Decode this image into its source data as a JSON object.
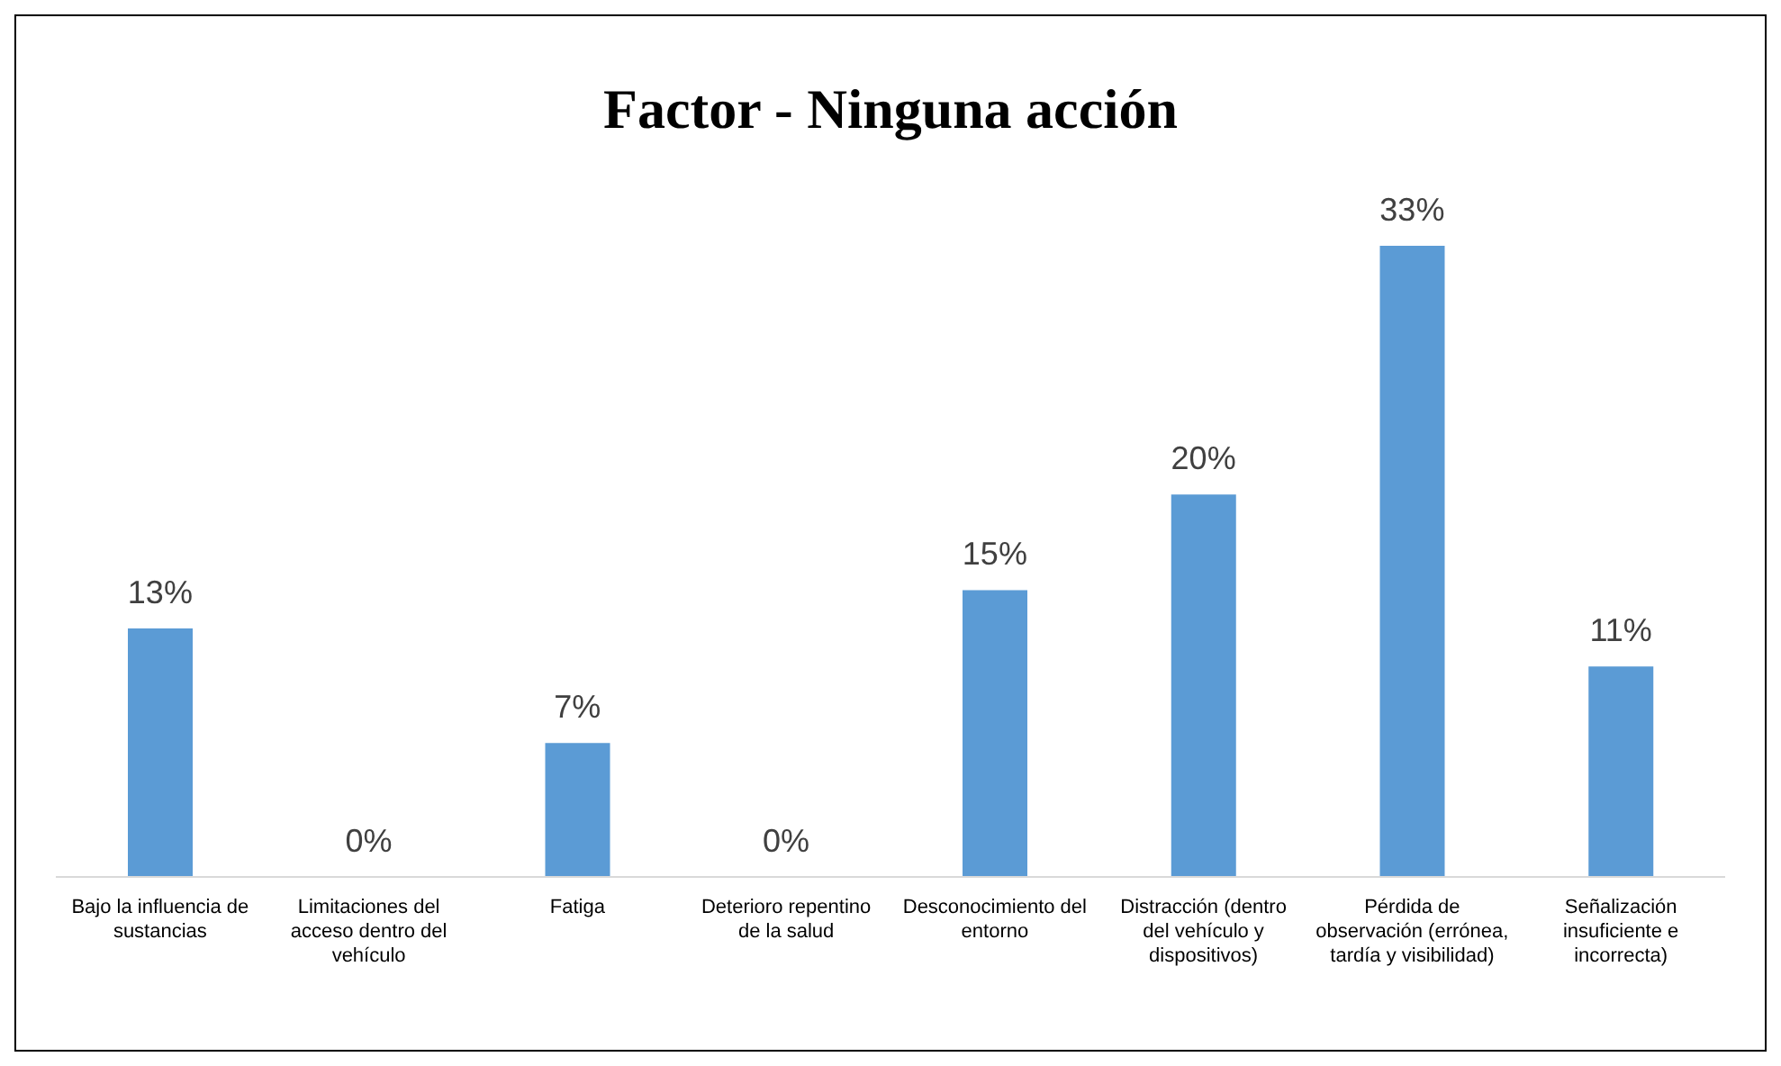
{
  "chart_data": {
    "type": "bar",
    "title": "Factor - Ninguna acción",
    "categories": [
      "Bajo la influencia de sustancias",
      "Limitaciones del acceso dentro del vehículo",
      "Fatiga",
      "Deterioro repentino de la salud",
      "Desconocimiento del entorno",
      "Distracción (dentro del vehículo y dispositivos)",
      "Pérdida de observación (errónea, tardía y visibilidad)",
      "Señalización insuficiente e incorrecta)"
    ],
    "values": [
      13,
      0,
      7,
      0,
      15,
      20,
      33,
      11
    ],
    "value_labels": [
      "13%",
      "0%",
      "7%",
      "0%",
      "15%",
      "20%",
      "33%",
      "11%"
    ],
    "color": "#5b9bd5"
  }
}
